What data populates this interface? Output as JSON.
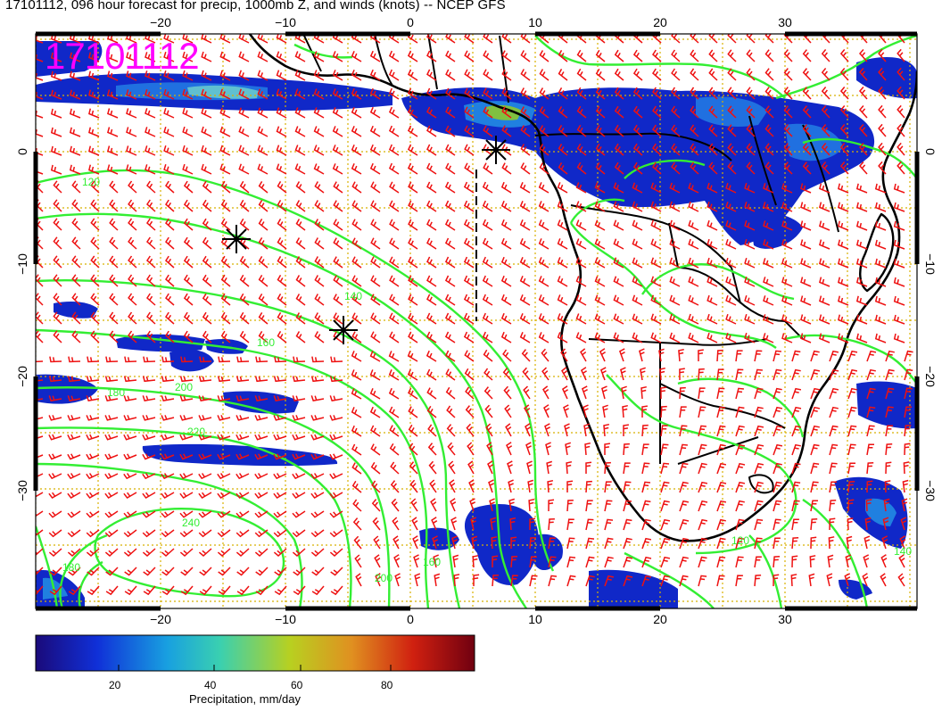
{
  "title": "17101112, 096 hour forecast for precip, 1000mb Z, and winds (knots) -- NCEP GFS",
  "stamp": "17101112",
  "axes": {
    "lon_ticks": [
      "−20",
      "−10",
      "0",
      "10",
      "20",
      "30"
    ],
    "lat_ticks": [
      "0",
      "−10",
      "−20",
      "−30"
    ]
  },
  "contour_labels": [
    "120",
    "140",
    "160",
    "180",
    "200",
    "220",
    "240",
    "120",
    "140",
    "160",
    "180",
    "200"
  ],
  "colorbar": {
    "label": "Precipitation, mm/day",
    "ticks": [
      "20",
      "40",
      "60",
      "80"
    ],
    "colors": [
      "#1a0a7a",
      "#1030d8",
      "#18a0e0",
      "#3ad0b0",
      "#b8d020",
      "#e09020",
      "#d02010",
      "#700010"
    ]
  },
  "colors": {
    "contour": "#33ee33",
    "barb": "#ee1111",
    "grid": "#d8b000",
    "stamp": "#ff00ff"
  }
}
